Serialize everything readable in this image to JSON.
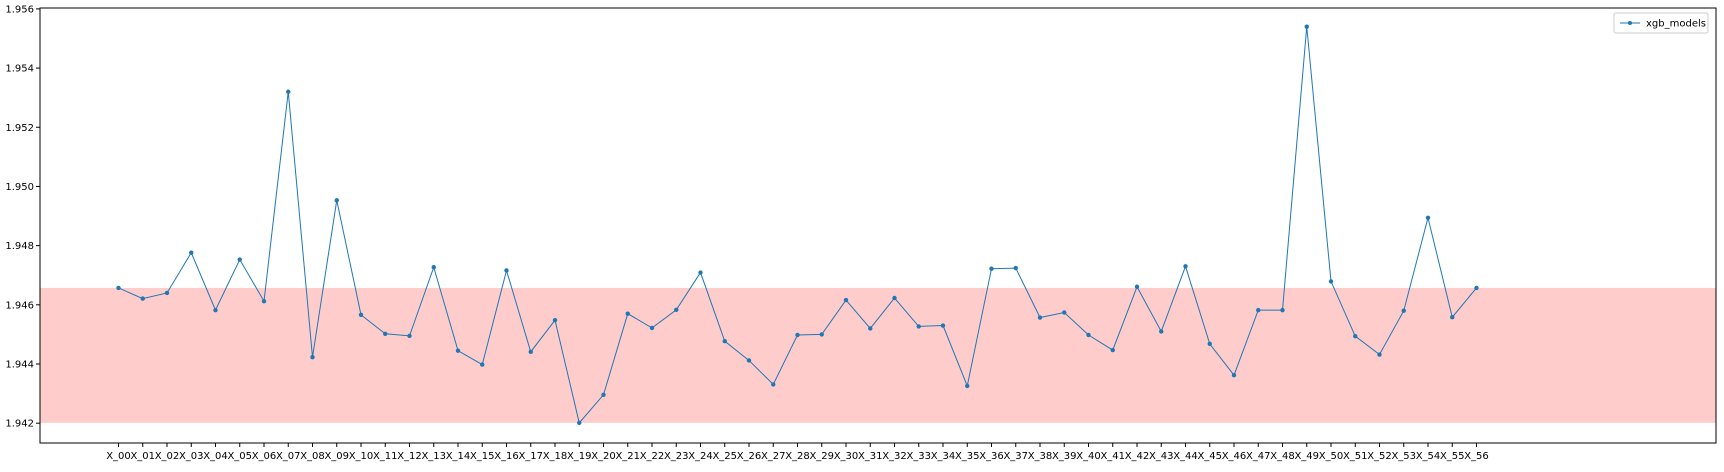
{
  "chart_data": {
    "type": "line",
    "title": "",
    "xlabel": "",
    "ylabel": "",
    "categories": [
      "X_00",
      "X_01",
      "X_02",
      "X_03",
      "X_04",
      "X_05",
      "X_06",
      "X_07",
      "X_08",
      "X_09",
      "X_10",
      "X_11",
      "X_12",
      "X_13",
      "X_14",
      "X_15",
      "X_16",
      "X_17",
      "X_18",
      "X_19",
      "X_20",
      "X_21",
      "X_22",
      "X_23",
      "X_24",
      "X_25",
      "X_26",
      "X_27",
      "X_28",
      "X_29",
      "X_30",
      "X_31",
      "X_32",
      "X_33",
      "X_34",
      "X_35",
      "X_36",
      "X_37",
      "X_38",
      "X_39",
      "X_40",
      "X_41",
      "X_42",
      "X_43",
      "X_44",
      "X_45",
      "X_46",
      "X_47",
      "X_48",
      "X_49",
      "X_50",
      "X_51",
      "X_52",
      "X_53",
      "X_54",
      "X_55",
      "X_56"
    ],
    "series": [
      {
        "name": "xgb_models",
        "color": "#1f77b4",
        "marker": "dot",
        "values": [
          1.94657,
          1.94621,
          1.9464,
          1.94776,
          1.94582,
          1.94753,
          1.94612,
          1.9532,
          1.94423,
          1.94953,
          1.94566,
          1.94502,
          1.94495,
          1.94727,
          1.94445,
          1.94398,
          1.94716,
          1.94441,
          1.94548,
          1.94201,
          1.94296,
          1.9457,
          1.94522,
          1.94583,
          1.94709,
          1.94477,
          1.94412,
          1.94331,
          1.94498,
          1.945,
          1.94616,
          1.9452,
          1.94623,
          1.94527,
          1.9453,
          1.94326,
          1.94722,
          1.94724,
          1.94557,
          1.94574,
          1.94498,
          1.94447,
          1.94661,
          1.9451,
          1.9473,
          1.94468,
          1.94362,
          1.94582,
          1.94582,
          1.9554,
          1.94679,
          1.94494,
          1.94432,
          1.9458,
          1.94894,
          1.94558,
          1.94657
        ]
      }
    ],
    "band": {
      "ymin": 1.94201,
      "ymax": 1.94657,
      "color": "#ff9999"
    },
    "ylim": [
      1.94133,
      1.95603
    ],
    "yticks": [
      "1.942",
      "1.944",
      "1.946",
      "1.948",
      "1.950",
      "1.952",
      "1.954",
      "1.956"
    ],
    "ytick_values": [
      1.942,
      1.944,
      1.946,
      1.948,
      1.95,
      1.952,
      1.954,
      1.956
    ],
    "grid": false,
    "legend_position": "top-right"
  }
}
